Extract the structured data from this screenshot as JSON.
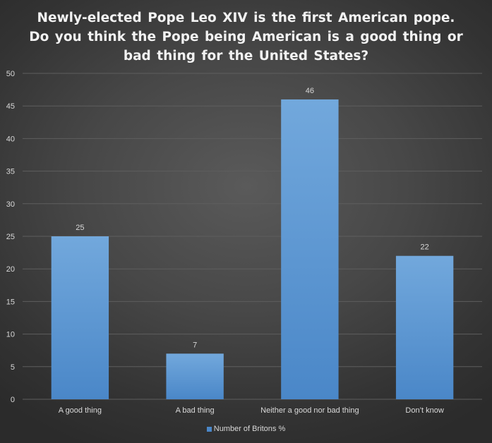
{
  "colors": {
    "bar_top": "#72a8dc",
    "bar_bottom": "#4a87c8",
    "gridline": "#5e5e5e",
    "axis_text": "#d9d9d9",
    "label_text": "#d9d9d9"
  },
  "chart_data": {
    "type": "bar",
    "title": "Newly-elected Pope Leo XIV is the first American pope. Do you think the Pope being American is a good thing or bad thing for the United States?",
    "categories": [
      "A good thing",
      "A bad thing",
      "Neither a good nor bad thing",
      "Don’t know"
    ],
    "series": [
      {
        "name": "Number of Britons %",
        "values": [
          25,
          7,
          46,
          22
        ]
      }
    ],
    "ylim": [
      0,
      50
    ],
    "yticks": [
      0,
      5,
      10,
      15,
      20,
      25,
      30,
      35,
      40,
      45,
      50
    ],
    "grid": true,
    "data_labels": true,
    "legend_position": "bottom",
    "xlabel": "",
    "ylabel": ""
  }
}
